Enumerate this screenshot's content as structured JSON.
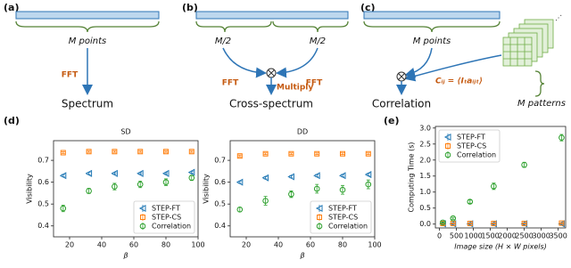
{
  "panel_labels": [
    "(a)",
    "(b)",
    "(c)",
    "(d)",
    "(e)"
  ],
  "diagrams": {
    "a": {
      "input": "M points",
      "transform": "FFT",
      "output": "Spectrum"
    },
    "b": {
      "left_input": "M/2",
      "right_input": "M/2",
      "left_transform": "FFT",
      "right_transform": "FFT",
      "operation": "Multiply",
      "output": "Cross-spectrum"
    },
    "c": {
      "input": "M points",
      "patterns": "M patterns",
      "formula": "Cᵢⱼ = ⟨Iₜaᵢⱼₜ⟩",
      "output": "Correlation"
    }
  },
  "chart_data": [
    {
      "type": "scatter",
      "title": "SD",
      "x_label": "β",
      "y_label": "Visibility",
      "x": [
        16,
        32,
        48,
        64,
        80,
        96
      ],
      "xlim": [
        10,
        100
      ],
      "xticks": [
        20,
        40,
        60,
        80,
        100
      ],
      "ylim": [
        0.35,
        0.79
      ],
      "yticks": [
        0.4,
        0.5,
        0.6,
        0.7
      ],
      "legend": "lower right",
      "series": [
        {
          "name": "STEP-FT",
          "color": "#1f77b4",
          "marker": "triangle-left",
          "values": [
            0.63,
            0.64,
            0.64,
            0.64,
            0.64,
            0.645
          ],
          "errors": [
            0.005,
            0.005,
            0.004,
            0.004,
            0.004,
            0.004
          ]
        },
        {
          "name": "STEP-CS",
          "color": "#ff7f0e",
          "marker": "square",
          "values": [
            0.735,
            0.74,
            0.74,
            0.74,
            0.74,
            0.74
          ],
          "errors": [
            0.004,
            0.004,
            0.004,
            0.004,
            0.004,
            0.004
          ]
        },
        {
          "name": "Correlation",
          "color": "#2ca02c",
          "marker": "circle",
          "values": [
            0.48,
            0.56,
            0.58,
            0.59,
            0.6,
            0.62
          ],
          "errors": [
            0.015,
            0.012,
            0.015,
            0.015,
            0.015,
            0.012
          ]
        }
      ]
    },
    {
      "type": "scatter",
      "title": "DD",
      "x_label": "β",
      "y_label": "Visibility",
      "x": [
        16,
        32,
        48,
        64,
        80,
        96
      ],
      "xlim": [
        10,
        100
      ],
      "xticks": [
        20,
        40,
        60,
        80,
        100
      ],
      "ylim": [
        0.35,
        0.79
      ],
      "yticks": [
        0.4,
        0.5,
        0.6,
        0.7
      ],
      "legend": "lower right",
      "series": [
        {
          "name": "STEP-FT",
          "color": "#1f77b4",
          "marker": "triangle-left",
          "values": [
            0.6,
            0.62,
            0.625,
            0.63,
            0.63,
            0.635
          ],
          "errors": [
            0.005,
            0.005,
            0.005,
            0.005,
            0.005,
            0.005
          ]
        },
        {
          "name": "STEP-CS",
          "color": "#ff7f0e",
          "marker": "square",
          "values": [
            0.72,
            0.73,
            0.73,
            0.73,
            0.73,
            0.73
          ],
          "errors": [
            0.004,
            0.004,
            0.004,
            0.004,
            0.004,
            0.004
          ]
        },
        {
          "name": "Correlation",
          "color": "#2ca02c",
          "marker": "circle",
          "values": [
            0.475,
            0.515,
            0.545,
            0.57,
            0.565,
            0.59
          ],
          "errors": [
            0.01,
            0.02,
            0.015,
            0.02,
            0.02,
            0.02
          ]
        }
      ]
    },
    {
      "type": "scatter",
      "x_label": "Image size (H × W pixels)",
      "y_label": "Computing Time (s)",
      "x": [
        100,
        400,
        900,
        1600,
        2500,
        3600
      ],
      "xlim": [
        -120,
        3720
      ],
      "xticks": [
        0,
        500,
        1000,
        1500,
        2000,
        2500,
        3000,
        3500
      ],
      "ylim": [
        -0.12,
        3.05
      ],
      "yticks": [
        {
          "value": 0,
          "label": "0.0"
        },
        0.5,
        {
          "value": 1,
          "label": "1.0"
        },
        1.5,
        {
          "value": 2,
          "label": "2.0"
        },
        2.5,
        {
          "value": 3,
          "label": "3.0"
        }
      ],
      "legend": "upper left",
      "series": [
        {
          "name": "STEP-FT",
          "color": "#1f77b4",
          "marker": "triangle-left",
          "values": [
            0.01,
            0.01,
            0.01,
            0.01,
            0.01,
            0.01
          ],
          "errors": [
            0.02,
            0.02,
            0.02,
            0.02,
            0.02,
            0.02
          ]
        },
        {
          "name": "STEP-CS",
          "color": "#ff7f0e",
          "marker": "square",
          "values": [
            0.02,
            0.02,
            0.02,
            0.02,
            0.02,
            0.03
          ],
          "errors": [
            0.01,
            0.01,
            0.01,
            0.01,
            0.01,
            0.01
          ]
        },
        {
          "name": "Correlation",
          "color": "#2ca02c",
          "marker": "circle",
          "values": [
            0.05,
            0.18,
            0.7,
            1.18,
            1.85,
            2.7
          ],
          "errors": [
            0.02,
            0.03,
            0.05,
            0.1,
            0.08,
            0.1
          ]
        }
      ]
    }
  ]
}
